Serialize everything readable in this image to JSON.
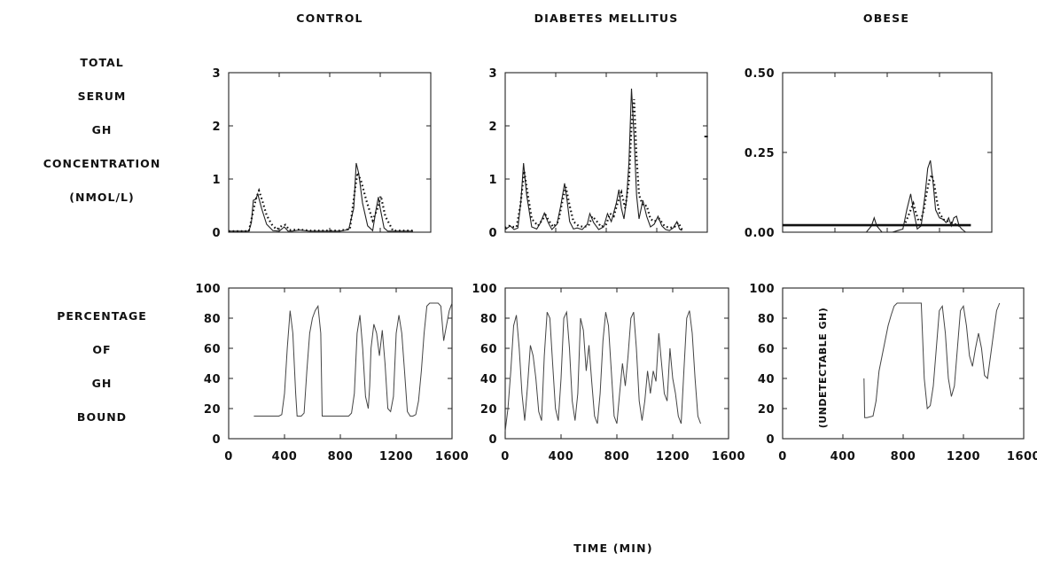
{
  "row_labels": {
    "top": [
      "TOTAL",
      "SERUM",
      "GH",
      "CONCENTRATION",
      "(NMOL/L)"
    ],
    "bottom": [
      "PERCENTAGE",
      "OF",
      "GH",
      "BOUND"
    ]
  },
  "xlabel": "TIME (MIN)",
  "chart_data": [
    {
      "type": "line",
      "title": "CONTROL",
      "xlim": [
        0,
        1600
      ],
      "ylim": [
        0,
        3
      ],
      "xticks": [
        0,
        400,
        800,
        1200,
        1600
      ],
      "yticks": [
        0,
        1,
        2,
        3
      ],
      "series": [
        {
          "style": "solid",
          "x": [
            0,
            160,
            180,
            195,
            215,
            230,
            260,
            300,
            350,
            400,
            420,
            440,
            470,
            500,
            560,
            640,
            700,
            760,
            880,
            950,
            990,
            1010,
            1030,
            1060,
            1100,
            1140,
            1165,
            1185,
            1200,
            1230,
            1260,
            1300,
            1460
          ],
          "y": [
            0.02,
            0.02,
            0.18,
            0.6,
            0.62,
            0.72,
            0.45,
            0.15,
            0.03,
            0.02,
            0.06,
            0.1,
            0.02,
            0.02,
            0.04,
            0.02,
            0.02,
            0.02,
            0.02,
            0.05,
            0.45,
            1.3,
            1.1,
            0.55,
            0.12,
            0.03,
            0.4,
            0.66,
            0.45,
            0.08,
            0.02,
            0.02,
            0.02
          ]
        },
        {
          "style": "dotted",
          "x": [
            0,
            160,
            190,
            215,
            240,
            265,
            300,
            340,
            380,
            420,
            450,
            480,
            560,
            640,
            880,
            960,
            1000,
            1020,
            1050,
            1090,
            1140,
            1180,
            1205,
            1240,
            1300,
            1460
          ],
          "y": [
            0.02,
            0.02,
            0.35,
            0.62,
            0.78,
            0.6,
            0.32,
            0.15,
            0.05,
            0.12,
            0.14,
            0.04,
            0.05,
            0.03,
            0.03,
            0.06,
            0.8,
            1.12,
            0.95,
            0.6,
            0.22,
            0.45,
            0.68,
            0.3,
            0.03,
            0.03
          ]
        }
      ]
    },
    {
      "type": "line",
      "title": "DIABETES MELLITUS",
      "xlim": [
        0,
        1600
      ],
      "ylim": [
        0,
        3
      ],
      "xticks": [
        0,
        400,
        800,
        1200,
        1600
      ],
      "yticks": [
        0,
        1,
        2,
        3
      ],
      "series": [
        {
          "style": "solid",
          "x": [
            0,
            40,
            70,
            100,
            125,
            145,
            170,
            210,
            250,
            280,
            310,
            340,
            370,
            410,
            440,
            470,
            490,
            510,
            540,
            570,
            610,
            650,
            670,
            700,
            740,
            780,
            810,
            840,
            880,
            900,
            920,
            940,
            960,
            980,
            1000,
            1020,
            1040,
            1060,
            1090,
            1120,
            1150,
            1180,
            1210,
            1240,
            1270,
            1300,
            1330,
            1360,
            1380,
            1400
          ],
          "y": [
            0.05,
            0.12,
            0.05,
            0.08,
            0.6,
            1.3,
            0.7,
            0.1,
            0.06,
            0.18,
            0.36,
            0.18,
            0.05,
            0.15,
            0.5,
            0.92,
            0.6,
            0.2,
            0.06,
            0.08,
            0.05,
            0.15,
            0.35,
            0.18,
            0.05,
            0.1,
            0.35,
            0.2,
            0.55,
            0.8,
            0.45,
            0.25,
            0.6,
            1.3,
            2.7,
            1.8,
            0.7,
            0.25,
            0.6,
            0.3,
            0.1,
            0.15,
            0.3,
            0.12,
            0.05,
            0.03,
            0.08,
            0.2,
            0.06,
            0.03
          ]
        },
        {
          "style": "dotted",
          "x": [
            0,
            30,
            60,
            90,
            120,
            150,
            180,
            210,
            260,
            290,
            320,
            350,
            380,
            420,
            450,
            480,
            510,
            540,
            580,
            620,
            660,
            690,
            720,
            760,
            800,
            830,
            860,
            890,
            920,
            950,
            980,
            1000,
            1020,
            1040,
            1060,
            1090,
            1120,
            1150,
            1180,
            1220,
            1260,
            1300,
            1340,
            1370,
            1400
          ],
          "y": [
            0.08,
            0.12,
            0.1,
            0.1,
            0.5,
            1.15,
            0.7,
            0.25,
            0.12,
            0.22,
            0.32,
            0.2,
            0.1,
            0.2,
            0.55,
            0.85,
            0.5,
            0.2,
            0.12,
            0.1,
            0.12,
            0.3,
            0.22,
            0.1,
            0.15,
            0.35,
            0.3,
            0.55,
            0.75,
            0.45,
            0.95,
            2.0,
            2.5,
            1.4,
            0.7,
            0.5,
            0.5,
            0.25,
            0.2,
            0.25,
            0.12,
            0.08,
            0.1,
            0.18,
            0.05
          ]
        }
      ],
      "annotation": "-"
    },
    {
      "type": "line",
      "title": "OBESE",
      "xlim": [
        0,
        1600
      ],
      "ylim": [
        0,
        0.5
      ],
      "xticks": [
        0,
        400,
        800,
        1200,
        1600
      ],
      "yticks": [
        "0.00",
        "0.25",
        "0.50"
      ],
      "series": [
        {
          "style": "solid",
          "x": [
            600,
            640,
            680,
            700,
            720,
            760,
            800,
            840,
            880,
            920,
            950,
            980,
            1000,
            1030,
            1060,
            1090,
            1110,
            1130,
            1150,
            1170,
            1200,
            1230,
            1250,
            1270,
            1290,
            1310,
            1330,
            1350,
            1370,
            1400
          ],
          "y": [
            0.0,
            0.0,
            0.02,
            0.045,
            0.02,
            0.0,
            0.0,
            0.0,
            0.005,
            0.01,
            0.07,
            0.12,
            0.07,
            0.01,
            0.02,
            0.12,
            0.2,
            0.225,
            0.16,
            0.07,
            0.045,
            0.04,
            0.03,
            0.045,
            0.02,
            0.045,
            0.05,
            0.02,
            0.01,
            0.0
          ]
        },
        {
          "style": "dotted",
          "x": [
            940,
            970,
            1000,
            1020,
            1040,
            1060,
            1080,
            1100,
            1120,
            1140,
            1160,
            1180,
            1200,
            1230,
            1260,
            1290,
            1320,
            1350
          ],
          "y": [
            0.03,
            0.06,
            0.09,
            0.06,
            0.035,
            0.04,
            0.07,
            0.12,
            0.16,
            0.18,
            0.15,
            0.1,
            0.06,
            0.04,
            0.035,
            0.03,
            0.025,
            0.02
          ]
        },
        {
          "style": "thick",
          "x": [
            0,
            1440
          ],
          "y": [
            0.022,
            0.022
          ]
        }
      ]
    },
    {
      "type": "line",
      "title": "",
      "xlim": [
        0,
        1600
      ],
      "ylim": [
        0,
        100
      ],
      "xticks": [
        0,
        400,
        800,
        1200,
        1600
      ],
      "yticks": [
        0,
        20,
        40,
        60,
        80,
        100
      ],
      "series": [
        {
          "style": "solid",
          "x": [
            180,
            360,
            380,
            400,
            420,
            440,
            460,
            480,
            490,
            520,
            540,
            560,
            580,
            600,
            620,
            640,
            660,
            670,
            700,
            800,
            860,
            880,
            900,
            920,
            940,
            960,
            980,
            1000,
            1010,
            1020,
            1040,
            1060,
            1080,
            1100,
            1120,
            1140,
            1160,
            1180,
            1200,
            1220,
            1240,
            1260,
            1280,
            1300,
            1320,
            1340,
            1360,
            1380,
            1400,
            1420,
            1440,
            1460,
            1480,
            1500,
            1520,
            1540,
            1560,
            1580,
            1600
          ],
          "y": [
            15,
            15,
            16,
            30,
            60,
            85,
            70,
            30,
            15,
            15,
            17,
            45,
            70,
            80,
            85,
            88,
            70,
            15,
            15,
            15,
            15,
            17,
            30,
            70,
            82,
            60,
            28,
            20,
            35,
            60,
            76,
            70,
            55,
            72,
            50,
            20,
            18,
            28,
            70,
            82,
            70,
            45,
            18,
            15,
            15,
            16,
            25,
            45,
            70,
            88,
            90,
            90,
            90,
            90,
            88,
            65,
            75,
            85,
            90
          ]
        }
      ]
    },
    {
      "type": "line",
      "title": "",
      "xlim": [
        0,
        1600
      ],
      "ylim": [
        0,
        100
      ],
      "xticks": [
        0,
        400,
        800,
        1200,
        1600
      ],
      "yticks": [
        0,
        20,
        40,
        60,
        80,
        100
      ],
      "series": [
        {
          "style": "solid",
          "x": [
            0,
            20,
            40,
            60,
            80,
            100,
            120,
            140,
            160,
            180,
            200,
            220,
            240,
            260,
            280,
            300,
            320,
            340,
            360,
            380,
            400,
            420,
            440,
            460,
            480,
            500,
            520,
            540,
            560,
            580,
            600,
            620,
            640,
            660,
            680,
            700,
            720,
            740,
            760,
            780,
            800,
            820,
            840,
            860,
            880,
            900,
            920,
            940,
            960,
            980,
            1000,
            1020,
            1040,
            1060,
            1080,
            1100,
            1120,
            1140,
            1160,
            1180,
            1200,
            1220,
            1240,
            1260,
            1280,
            1300,
            1320,
            1340,
            1360,
            1380,
            1400
          ],
          "y": [
            5,
            20,
            45,
            75,
            82,
            60,
            30,
            12,
            35,
            62,
            55,
            40,
            18,
            12,
            55,
            84,
            80,
            50,
            20,
            12,
            40,
            80,
            84,
            60,
            25,
            12,
            30,
            80,
            72,
            45,
            62,
            38,
            15,
            10,
            30,
            65,
            84,
            75,
            45,
            15,
            10,
            30,
            50,
            35,
            55,
            80,
            84,
            60,
            25,
            12,
            25,
            45,
            30,
            45,
            38,
            70,
            50,
            30,
            25,
            60,
            40,
            30,
            15,
            10,
            45,
            80,
            85,
            70,
            40,
            15,
            10
          ]
        }
      ]
    },
    {
      "type": "line",
      "title": "",
      "xlim": [
        0,
        1600
      ],
      "ylim": [
        0,
        100
      ],
      "xticks": [
        0,
        400,
        800,
        1200,
        1600
      ],
      "yticks": [
        0,
        20,
        40,
        60,
        80,
        100
      ],
      "series": [
        {
          "style": "solid",
          "x": [
            540,
            545,
            560,
            600,
            620,
            640,
            660,
            680,
            700,
            720,
            740,
            760,
            780,
            800,
            820,
            840,
            860,
            880,
            900,
            920,
            940,
            960,
            980,
            1000,
            1020,
            1040,
            1060,
            1080,
            1100,
            1120,
            1140,
            1160,
            1180,
            1200,
            1220,
            1240,
            1260,
            1280,
            1300,
            1320,
            1340,
            1360,
            1380,
            1400,
            1420,
            1440
          ],
          "y": [
            40,
            14,
            14,
            15,
            25,
            45,
            55,
            65,
            75,
            82,
            88,
            90,
            90,
            90,
            90,
            90,
            90,
            90,
            90,
            90,
            40,
            20,
            22,
            35,
            60,
            85,
            88,
            70,
            40,
            28,
            35,
            60,
            85,
            88,
            75,
            55,
            48,
            60,
            70,
            60,
            42,
            40,
            55,
            70,
            85,
            90
          ]
        }
      ],
      "annotation": "(UNDETECTABLE GH)"
    }
  ]
}
